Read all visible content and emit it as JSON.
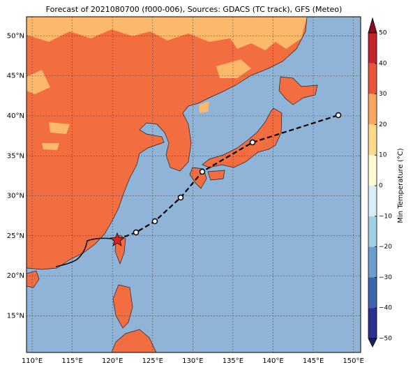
{
  "map": {
    "title": "Forecast of 2021080700 (f000-006), Sources: GDACS (TC track), GFS (Meteo)",
    "xlim": [
      109.3,
      150.9
    ],
    "ylim": [
      10.4,
      52.4
    ],
    "xticks": [
      {
        "value": 110,
        "label": "110°E"
      },
      {
        "value": 115,
        "label": "115°E"
      },
      {
        "value": 120,
        "label": "120°E"
      },
      {
        "value": 125,
        "label": "125°E"
      },
      {
        "value": 130,
        "label": "130°E"
      },
      {
        "value": 135,
        "label": "135°E"
      },
      {
        "value": 140,
        "label": "140°E"
      },
      {
        "value": 145,
        "label": "145°E"
      },
      {
        "value": 150,
        "label": "150°E"
      }
    ],
    "yticks": [
      {
        "value": 15,
        "label": "15°N"
      },
      {
        "value": 20,
        "label": "20°N"
      },
      {
        "value": 25,
        "label": "25°N"
      },
      {
        "value": 30,
        "label": "30°N"
      },
      {
        "value": 35,
        "label": "35°N"
      },
      {
        "value": 40,
        "label": "40°N"
      },
      {
        "value": 45,
        "label": "45°N"
      },
      {
        "value": 50,
        "label": "50°N"
      }
    ],
    "grid": true
  },
  "colorbar": {
    "label": "Min Temperature (°C)",
    "ticks": [
      {
        "value": -50,
        "label": "−50"
      },
      {
        "value": -40,
        "label": "−40"
      },
      {
        "value": -30,
        "label": "−30"
      },
      {
        "value": -20,
        "label": "−20"
      },
      {
        "value": -10,
        "label": "−10"
      },
      0,
      10,
      20,
      30,
      40,
      50
    ],
    "colors": [
      "#2b2f8f",
      "#3f65ad",
      "#6b9ecb",
      "#a3cfe3",
      "#d8eef5",
      "#fcfbd1",
      "#fdd98a",
      "#fba55e",
      "#e8563a",
      "#c3232a"
    ],
    "under_color": "#1d1f66",
    "over_color": "#8b0a1f"
  }
}
